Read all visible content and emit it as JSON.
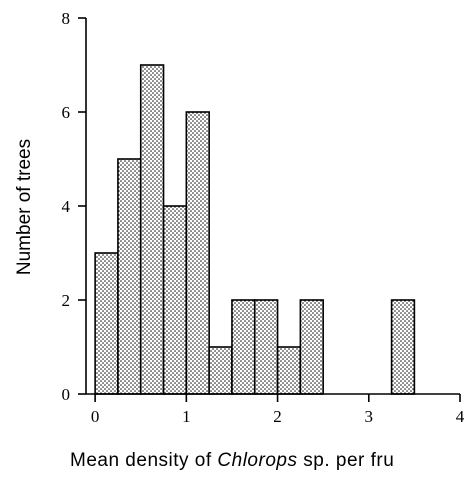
{
  "chart_data": {
    "type": "bar",
    "title": "",
    "ylabel": "Number of trees",
    "xlabel": {
      "prefix": "Mean  density  of ",
      "italic": "Chlorops",
      "suffix": " sp.  per  fru"
    },
    "bin_width": 0.25,
    "bins": [
      {
        "start": 0.0,
        "end": 0.25,
        "value": 3
      },
      {
        "start": 0.25,
        "end": 0.5,
        "value": 5
      },
      {
        "start": 0.5,
        "end": 0.75,
        "value": 7
      },
      {
        "start": 0.75,
        "end": 1.0,
        "value": 4
      },
      {
        "start": 1.0,
        "end": 1.25,
        "value": 6
      },
      {
        "start": 1.25,
        "end": 1.5,
        "value": 1
      },
      {
        "start": 1.5,
        "end": 1.75,
        "value": 2
      },
      {
        "start": 1.75,
        "end": 2.0,
        "value": 2
      },
      {
        "start": 2.0,
        "end": 2.25,
        "value": 1
      },
      {
        "start": 2.25,
        "end": 2.5,
        "value": 2
      },
      {
        "start": 3.25,
        "end": 3.5,
        "value": 2
      }
    ],
    "xlim": [
      -0.1,
      4.0
    ],
    "ylim": [
      0,
      8
    ],
    "xticks": [
      0,
      1,
      2,
      3,
      4
    ],
    "yticks": [
      0,
      2,
      4,
      6,
      8
    ],
    "bar_fill": "stippled",
    "grid": false
  }
}
